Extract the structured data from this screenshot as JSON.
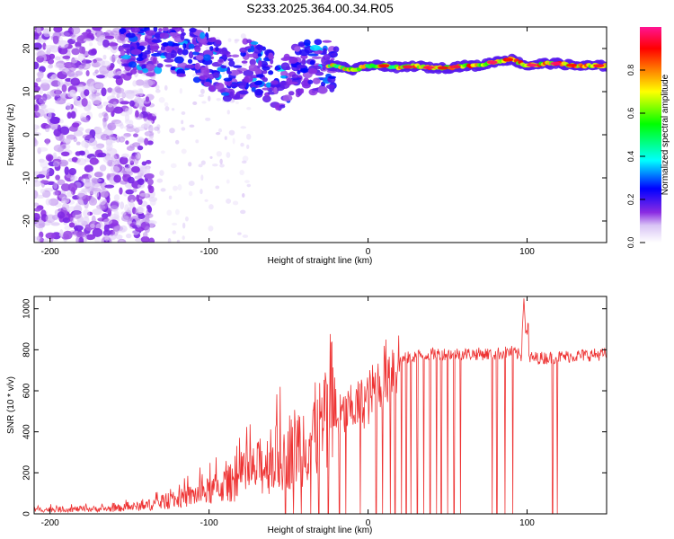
{
  "figure": {
    "title": "S233.2025.364.00.34.R05"
  },
  "chart_data": [
    {
      "type": "heatmap",
      "xlabel": "Height of straight line (km)",
      "ylabel": "Frequency (Hz)",
      "xlim": [
        -210,
        150
      ],
      "ylim": [
        -25,
        25
      ],
      "xticks": [
        -200,
        -100,
        0,
        100
      ],
      "yticks": [
        -20,
        -10,
        0,
        10,
        20
      ],
      "colorbar": {
        "label": "Normalized spectral amplitude",
        "range": [
          0,
          1
        ],
        "ticks": [
          "0.0",
          "0.2",
          "0.4",
          "0.6",
          "0.8"
        ],
        "colors": [
          "#ffffff",
          "#8a2be2",
          "#0000ff",
          "#00ffff",
          "#00ff00",
          "#ffff00",
          "#ff8000",
          "#ff0000",
          "#ff1493"
        ]
      },
      "ridge": [
        {
          "x": -150,
          "y": 20
        },
        {
          "x": -130,
          "y": 21
        },
        {
          "x": -110,
          "y": 19
        },
        {
          "x": -95,
          "y": 16
        },
        {
          "x": -85,
          "y": 13
        },
        {
          "x": -75,
          "y": 17
        },
        {
          "x": -65,
          "y": 14
        },
        {
          "x": -55,
          "y": 11
        },
        {
          "x": -45,
          "y": 15
        },
        {
          "x": -30,
          "y": 16
        },
        {
          "x": -20,
          "y": 16
        },
        {
          "x": -10,
          "y": 15
        },
        {
          "x": 0,
          "y": 16
        },
        {
          "x": 10,
          "y": 16
        },
        {
          "x": 20,
          "y": 15.5
        },
        {
          "x": 30,
          "y": 16
        },
        {
          "x": 40,
          "y": 15.5
        },
        {
          "x": 50,
          "y": 15.5
        },
        {
          "x": 60,
          "y": 16
        },
        {
          "x": 70,
          "y": 16
        },
        {
          "x": 80,
          "y": 17
        },
        {
          "x": 90,
          "y": 17.5
        },
        {
          "x": 100,
          "y": 16
        },
        {
          "x": 110,
          "y": 16.5
        },
        {
          "x": 120,
          "y": 16.5
        },
        {
          "x": 130,
          "y": 16
        },
        {
          "x": 140,
          "y": 16
        }
      ]
    },
    {
      "type": "line",
      "xlabel": "Height of straight line (km)",
      "ylabel": "SNR (10 * v/v)",
      "xlim": [
        -210,
        150
      ],
      "ylim": [
        0,
        1060
      ],
      "xticks": [
        -200,
        -100,
        0,
        100
      ],
      "yticks": [
        0,
        200,
        400,
        600,
        800,
        1000
      ],
      "series": [
        {
          "color": "#ee3333",
          "envelope": {
            "x": [
              -210,
              -160,
              -140,
              -120,
              -100,
              -80,
              -60,
              -40,
              -20,
              0,
              10,
              20,
              30,
              40,
              60,
              80,
              90,
              100,
              110,
              130,
              150
            ],
            "y": [
              20,
              25,
              40,
              70,
              110,
              170,
              260,
              360,
              460,
              560,
              680,
              750,
              770,
              780,
              780,
              780,
              790,
              760,
              760,
              770,
              780
            ]
          },
          "peak": {
            "x": 98,
            "y": 1050
          },
          "dropouts": [
            -52,
            -47,
            -42,
            -36,
            -31,
            -25,
            -18,
            -14,
            -5,
            5,
            9,
            14,
            17,
            21,
            24,
            27,
            31,
            35,
            39,
            43,
            46,
            50,
            54,
            58,
            78,
            81,
            86,
            91,
            116,
            119
          ]
        }
      ]
    }
  ]
}
